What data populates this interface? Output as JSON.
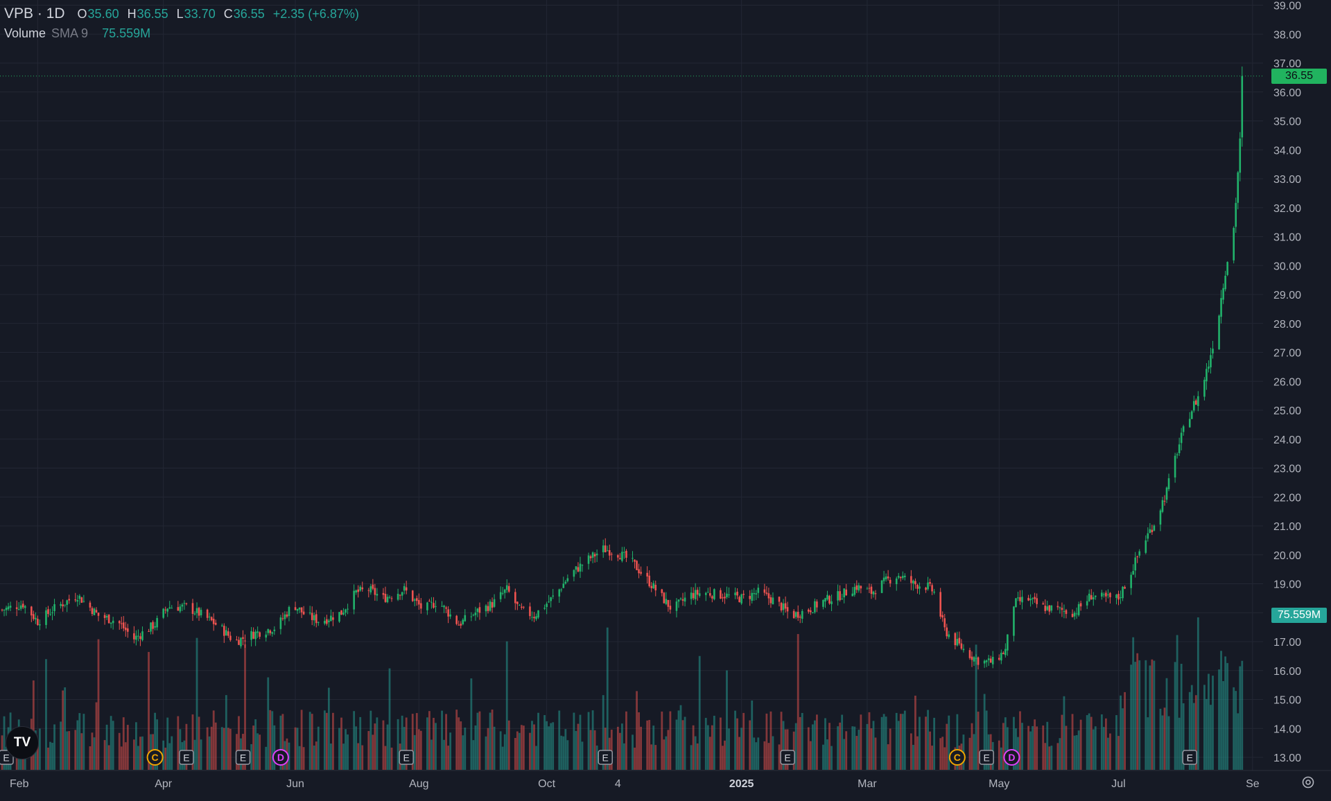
{
  "header": {
    "symbol_interval": "VPB · 1D",
    "open_label": "O",
    "open": "35.60",
    "high_label": "H",
    "high": "36.55",
    "low_label": "L",
    "low": "33.70",
    "close_label": "C",
    "close": "36.55",
    "change": "+2.35 (+6.87%)"
  },
  "volume_legend": {
    "name": "Volume",
    "indicator": "SMA 9",
    "value": "75.559M"
  },
  "price_tags": {
    "last_price": "36.55",
    "volume_sma": "75.559M"
  },
  "logo_text": "TV",
  "colors": {
    "background": "#161a25",
    "up": "#26a69a",
    "up_candle": "#21b36b",
    "down": "#ef5350",
    "grid": "#232734",
    "text": "#b2b5be",
    "last_price_tag": "#21b35f",
    "volume_tag": "#26a69a",
    "marker_earnings": "#9598a1",
    "marker_c": "#f0a500",
    "marker_d": "#e040fb"
  },
  "chart_data": {
    "type": "candlestick",
    "title": "VPB · 1D",
    "ylim": [
      12.6,
      39.2
    ],
    "y_ticks": [
      "13.00",
      "14.00",
      "15.00",
      "16.00",
      "17.00",
      "18.00",
      "19.00",
      "20.00",
      "21.00",
      "22.00",
      "23.00",
      "24.00",
      "25.00",
      "26.00",
      "27.00",
      "28.00",
      "29.00",
      "30.00",
      "31.00",
      "32.00",
      "33.00",
      "34.00",
      "35.00",
      "36.00",
      "37.00",
      "38.00",
      "39.00"
    ],
    "x_ticks": [
      {
        "label": "Feb",
        "date": "2024-02-01",
        "bold": false
      },
      {
        "label": "Apr",
        "date": "2024-04-01",
        "bold": false
      },
      {
        "label": "Jun",
        "date": "2024-06-03",
        "bold": false
      },
      {
        "label": "Aug",
        "date": "2024-08-01",
        "bold": false
      },
      {
        "label": "Oct",
        "date": "2024-10-01",
        "bold": false
      },
      {
        "label": "4",
        "date": "2024-11-04",
        "bold": false
      },
      {
        "label": "2025",
        "date": "2025-01-02",
        "bold": true
      },
      {
        "label": "Mar",
        "date": "2025-03-03",
        "bold": false
      },
      {
        "label": "May",
        "date": "2025-05-05",
        "bold": false
      },
      {
        "label": "Jul",
        "date": "2025-07-01",
        "bold": false
      },
      {
        "label": "Se",
        "date": "2025-09-03",
        "bold": false
      }
    ],
    "price_anchors": [
      [
        "2024-01-15",
        18.1
      ],
      [
        "2024-01-25",
        18.3
      ],
      [
        "2024-02-01",
        17.7
      ],
      [
        "2024-02-10",
        18.2
      ],
      [
        "2024-02-20",
        18.6
      ],
      [
        "2024-03-01",
        17.9
      ],
      [
        "2024-03-10",
        17.7
      ],
      [
        "2024-03-18",
        17.1
      ],
      [
        "2024-03-28",
        17.6
      ],
      [
        "2024-04-03",
        18.2
      ],
      [
        "2024-04-12",
        18.2
      ],
      [
        "2024-04-20",
        17.9
      ],
      [
        "2024-04-28",
        17.5
      ],
      [
        "2024-05-05",
        17.0
      ],
      [
        "2024-05-15",
        17.3
      ],
      [
        "2024-05-25",
        17.5
      ],
      [
        "2024-06-02",
        18.3
      ],
      [
        "2024-06-08",
        17.9
      ],
      [
        "2024-06-15",
        17.7
      ],
      [
        "2024-06-25",
        18.0
      ],
      [
        "2024-07-02",
        18.7
      ],
      [
        "2024-07-08",
        18.8
      ],
      [
        "2024-07-15",
        18.5
      ],
      [
        "2024-07-25",
        18.8
      ],
      [
        "2024-08-03",
        18.1
      ],
      [
        "2024-08-10",
        18.4
      ],
      [
        "2024-08-15",
        18.0
      ],
      [
        "2024-08-20",
        17.6
      ],
      [
        "2024-08-28",
        18.0
      ],
      [
        "2024-09-05",
        18.3
      ],
      [
        "2024-09-12",
        18.8
      ],
      [
        "2024-09-18",
        18.1
      ],
      [
        "2024-09-25",
        17.9
      ],
      [
        "2024-10-05",
        18.6
      ],
      [
        "2024-10-12",
        19.3
      ],
      [
        "2024-10-20",
        19.8
      ],
      [
        "2024-10-28",
        20.2
      ],
      [
        "2024-11-03",
        20.1
      ],
      [
        "2024-11-10",
        19.8
      ],
      [
        "2024-11-15",
        19.4
      ],
      [
        "2024-11-22",
        18.8
      ],
      [
        "2024-11-30",
        18.1
      ],
      [
        "2024-12-08",
        18.6
      ],
      [
        "2024-12-15",
        18.7
      ],
      [
        "2024-12-25",
        18.6
      ],
      [
        "2025-01-02",
        18.5
      ],
      [
        "2025-01-10",
        18.7
      ],
      [
        "2025-01-18",
        18.4
      ],
      [
        "2025-01-26",
        17.9
      ],
      [
        "2025-02-03",
        18.1
      ],
      [
        "2025-02-10",
        18.4
      ],
      [
        "2025-02-18",
        18.6
      ],
      [
        "2025-02-26",
        18.9
      ],
      [
        "2025-03-05",
        18.7
      ],
      [
        "2025-03-12",
        19.1
      ],
      [
        "2025-03-18",
        19.3
      ],
      [
        "2025-03-25",
        19.0
      ],
      [
        "2025-04-01",
        18.9
      ],
      [
        "2025-04-04",
        18.7
      ],
      [
        "2025-04-09",
        17.4
      ],
      [
        "2025-04-14",
        17.0
      ],
      [
        "2025-04-20",
        16.6
      ],
      [
        "2025-04-26",
        16.3
      ],
      [
        "2025-05-02",
        16.3
      ],
      [
        "2025-05-08",
        16.7
      ],
      [
        "2025-05-12",
        18.3
      ],
      [
        "2025-05-18",
        18.5
      ],
      [
        "2025-05-25",
        18.2
      ],
      [
        "2025-06-02",
        18.1
      ],
      [
        "2025-06-10",
        18.0
      ],
      [
        "2025-06-18",
        18.6
      ],
      [
        "2025-06-24",
        18.5
      ],
      [
        "2025-07-01",
        18.5
      ],
      [
        "2025-07-07",
        19.4
      ],
      [
        "2025-07-12",
        20.3
      ],
      [
        "2025-07-18",
        21.1
      ],
      [
        "2025-07-24",
        22.2
      ],
      [
        "2025-07-29",
        23.6
      ],
      [
        "2025-08-04",
        24.9
      ],
      [
        "2025-08-09",
        25.6
      ],
      [
        "2025-08-13",
        26.6
      ],
      [
        "2025-08-18",
        28.4
      ],
      [
        "2025-08-21",
        29.9
      ],
      [
        "2025-08-25",
        31.3
      ],
      [
        "2025-08-28",
        34.2
      ],
      [
        "2025-08-29",
        36.55
      ]
    ],
    "volume_unit": "M",
    "volume_sma_period": 9,
    "volume_sma_last": 75.559,
    "last_close": 36.55,
    "events": [
      {
        "type": "E",
        "date": "2024-01-17"
      },
      {
        "type": "C",
        "date": "2024-03-28"
      },
      {
        "type": "E",
        "date": "2024-04-12"
      },
      {
        "type": "E",
        "date": "2024-05-09"
      },
      {
        "type": "D",
        "date": "2024-05-27"
      },
      {
        "type": "E",
        "date": "2024-07-26"
      },
      {
        "type": "E",
        "date": "2024-10-29"
      },
      {
        "type": "E",
        "date": "2025-01-24"
      },
      {
        "type": "C",
        "date": "2025-04-15"
      },
      {
        "type": "E",
        "date": "2025-04-29"
      },
      {
        "type": "D",
        "date": "2025-05-11"
      },
      {
        "type": "E",
        "date": "2025-08-04"
      }
    ]
  }
}
